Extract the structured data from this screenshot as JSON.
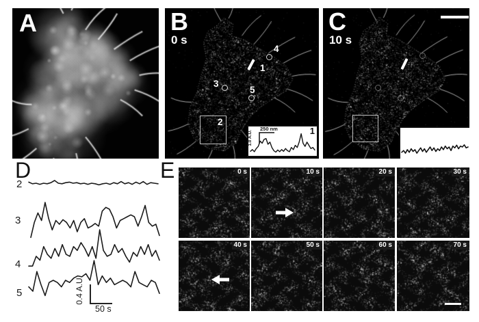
{
  "panel_a": {
    "label": "A"
  },
  "panel_b": {
    "label": "B",
    "time_label": "0 s",
    "markers": [
      {
        "id": "1",
        "type": "line"
      },
      {
        "id": "2",
        "type": "box"
      },
      {
        "id": "3",
        "type": "circle"
      },
      {
        "id": "4",
        "type": "circle"
      },
      {
        "id": "5",
        "type": "circle"
      }
    ],
    "inset": {
      "corner_label": "1",
      "x_scale_label": "250 nm",
      "y_scale_label": "1.0 A.U.",
      "trace": [
        0.12,
        0.2,
        0.1,
        0.25,
        0.35,
        0.6,
        0.5,
        0.68,
        0.72,
        0.45,
        0.55,
        0.3,
        0.15,
        0.08,
        0.18,
        0.1,
        0.2,
        0.12,
        0.25,
        0.15,
        0.1,
        0.3,
        0.2,
        0.4,
        0.3,
        0.55,
        0.95,
        0.5,
        0.35,
        0.55,
        0.4,
        0.25,
        0.3,
        0.18
      ]
    }
  },
  "panel_c": {
    "label": "C",
    "time_label": "10 s",
    "inset": {
      "trace": [
        0.2,
        0.3,
        0.15,
        0.35,
        0.2,
        0.4,
        0.25,
        0.35,
        0.15,
        0.3,
        0.45,
        0.25,
        0.4,
        0.2,
        0.35,
        0.5,
        0.3,
        0.45,
        0.25,
        0.4,
        0.3,
        0.5,
        0.35,
        0.55,
        0.4,
        0.5,
        0.3,
        0.55,
        0.45,
        0.6,
        0.4,
        0.55,
        0.5,
        0.62,
        0.45,
        0.5
      ]
    }
  },
  "panel_d": {
    "label": "D",
    "y_scale_label": "0.4 A.U.",
    "x_scale_label": "50 s",
    "traces": [
      {
        "id": "2",
        "values": [
          0.6,
          0.45,
          0.5,
          0.4,
          0.5,
          0.45,
          0.55,
          0.75,
          0.5,
          0.45,
          0.55,
          0.6,
          0.5,
          0.55,
          0.45,
          0.5,
          0.4,
          0.5,
          0.45,
          0.35,
          0.45,
          0.5,
          0.4,
          0.55,
          0.45,
          0.65,
          0.45,
          0.55,
          0.4,
          0.6,
          0.45,
          0.65,
          0.4,
          0.55,
          0.5,
          0.45
        ]
      },
      {
        "id": "3",
        "values": [
          0.05,
          0.45,
          0.7,
          0.5,
          0.98,
          0.55,
          0.25,
          0.5,
          0.4,
          0.52,
          0.45,
          0.3,
          0.5,
          0.2,
          0.45,
          0.55,
          0.3,
          0.35,
          0.42,
          0.35,
          0.75,
          0.85,
          0.8,
          0.6,
          0.3,
          0.5,
          0.55,
          0.6,
          0.65,
          0.6,
          0.35,
          0.6,
          0.9,
          0.45,
          0.35,
          0.4,
          0.1
        ]
      },
      {
        "id": "4",
        "values": [
          0.05,
          0.05,
          0.3,
          0.2,
          0.55,
          0.35,
          0.25,
          0.5,
          0.3,
          0.6,
          0.35,
          0.3,
          0.55,
          0.45,
          0.65,
          0.5,
          0.3,
          0.55,
          0.25,
          0.98,
          0.45,
          0.3,
          0.35,
          0.6,
          0.4,
          0.5,
          0.3,
          0.15,
          0.4,
          0.3,
          0.55,
          0.35,
          0.6,
          0.3,
          0.45,
          0.2
        ]
      },
      {
        "id": "5",
        "values": [
          0.35,
          0.25,
          0.7,
          0.4,
          0.15,
          0.45,
          0.5,
          0.45,
          0.35,
          0.5,
          0.45,
          0.55,
          0.6,
          0.58,
          0.65,
          0.5,
          0.95,
          0.4,
          0.6,
          0.45,
          0.55,
          0.4,
          0.45,
          0.5,
          0.45,
          0.35,
          0.7,
          0.45,
          0.4,
          0.35,
          0.5,
          0.45,
          0.2
        ]
      }
    ]
  },
  "panel_e": {
    "label": "E",
    "frames": [
      {
        "time": "0 s"
      },
      {
        "time": "10 s",
        "arrow": "right"
      },
      {
        "time": "20 s"
      },
      {
        "time": "30 s"
      },
      {
        "time": "40 s",
        "arrow": "left"
      },
      {
        "time": "50 s"
      },
      {
        "time": "60 s"
      },
      {
        "time": "70 s",
        "has_scale_bar": true
      }
    ]
  },
  "colors": {
    "figure_background": "#ffffff",
    "panel_background": "#000000",
    "speckle": "#ffffff",
    "trace_color": "#1a1a1a",
    "time_box_background": "#1a1a1a"
  }
}
